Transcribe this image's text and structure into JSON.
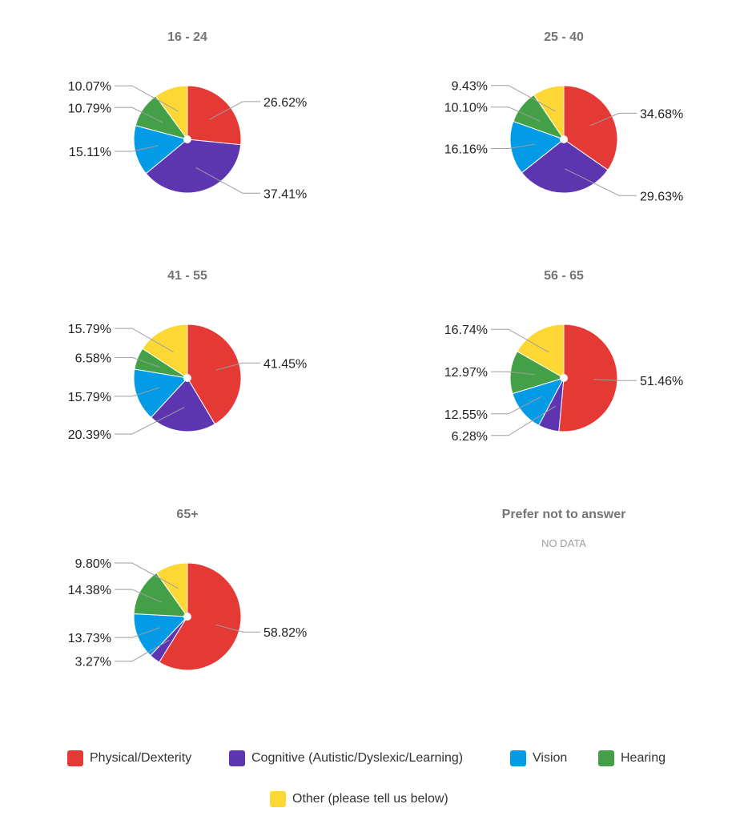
{
  "categories": [
    {
      "name": "Physical/Dexterity",
      "color": "#e53935"
    },
    {
      "name": "Cognitive (Autistic/Dyslexic/Learning)",
      "color": "#5e35b1"
    },
    {
      "name": "Vision",
      "color": "#039be5"
    },
    {
      "name": "Hearing",
      "color": "#43a047"
    },
    {
      "name": "Other (please tell us below)",
      "color": "#fdd835"
    }
  ],
  "chart_data": [
    {
      "type": "pie",
      "title": "16 - 24",
      "categories": [
        "Physical/Dexterity",
        "Cognitive (Autistic/Dyslexic/Learning)",
        "Vision",
        "Hearing",
        "Other (please tell us below)"
      ],
      "values": [
        26.62,
        37.41,
        15.11,
        10.79,
        10.07
      ],
      "labels": [
        "26.62%",
        "37.41%",
        "15.11%",
        "10.79%",
        "10.07%"
      ]
    },
    {
      "type": "pie",
      "title": "25 - 40",
      "categories": [
        "Physical/Dexterity",
        "Cognitive (Autistic/Dyslexic/Learning)",
        "Vision",
        "Hearing",
        "Other (please tell us below)"
      ],
      "values": [
        34.68,
        29.63,
        16.16,
        10.1,
        9.43
      ],
      "labels": [
        "34.68%",
        "29.63%",
        "16.16%",
        "10.10%",
        "9.43%"
      ]
    },
    {
      "type": "pie",
      "title": "41 - 55",
      "categories": [
        "Physical/Dexterity",
        "Cognitive (Autistic/Dyslexic/Learning)",
        "Vision",
        "Hearing",
        "Other (please tell us below)"
      ],
      "values": [
        41.45,
        20.39,
        15.79,
        6.58,
        15.79
      ],
      "labels": [
        "41.45%",
        "20.39%",
        "15.79%",
        "6.58%",
        "15.79%"
      ]
    },
    {
      "type": "pie",
      "title": "56 - 65",
      "categories": [
        "Physical/Dexterity",
        "Cognitive (Autistic/Dyslexic/Learning)",
        "Vision",
        "Hearing",
        "Other (please tell us below)"
      ],
      "values": [
        51.46,
        6.28,
        12.55,
        12.97,
        16.74
      ],
      "labels": [
        "51.46%",
        "6.28%",
        "12.55%",
        "12.97%",
        "16.74%"
      ]
    },
    {
      "type": "pie",
      "title": "65+",
      "categories": [
        "Physical/Dexterity",
        "Cognitive (Autistic/Dyslexic/Learning)",
        "Vision",
        "Hearing",
        "Other (please tell us below)"
      ],
      "values": [
        58.82,
        3.27,
        13.73,
        14.38,
        9.8
      ],
      "labels": [
        "58.82%",
        "3.27%",
        "13.73%",
        "14.38%",
        "9.80%"
      ]
    },
    {
      "type": "pie",
      "title": "Prefer not to answer",
      "categories": [],
      "values": [],
      "labels": [],
      "empty_text": "NO DATA"
    }
  ],
  "legend": {
    "items": [
      {
        "label": "Physical/Dexterity",
        "color": "#e53935"
      },
      {
        "label": "Cognitive (Autistic/Dyslexic/Learning)",
        "color": "#5e35b1"
      },
      {
        "label": "Vision",
        "color": "#039be5"
      },
      {
        "label": "Hearing",
        "color": "#43a047"
      },
      {
        "label": "Other (please tell us below)",
        "color": "#fdd835"
      }
    ]
  }
}
